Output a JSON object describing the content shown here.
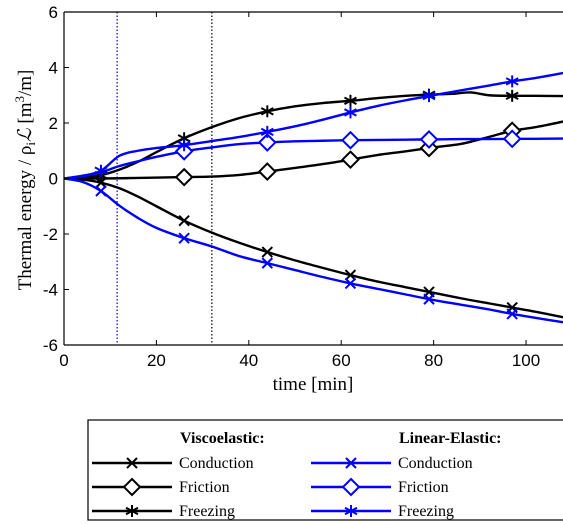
{
  "chart_data": {
    "type": "line",
    "xlabel": "time [min]",
    "ylabel": "Thermal energy / ρ",
    "ylabel_sub": "i",
    "ylabel_script": "ℒ",
    "ylabel_unit": " [m",
    "ylabel_unit_sup": "3",
    "ylabel_unit_end": "/m]",
    "xlim": [
      0,
      108
    ],
    "ylim": [
      -6,
      6
    ],
    "xticks": [
      0,
      20,
      40,
      60,
      80,
      100
    ],
    "yticks": [
      -6,
      -4,
      -2,
      0,
      2,
      4,
      6
    ],
    "xtick_labels": [
      "0",
      "20",
      "40",
      "60",
      "80",
      "100"
    ],
    "ytick_labels": [
      "-6",
      "-4",
      "-2",
      "0",
      "2",
      "4",
      "6"
    ],
    "grid": false,
    "vlines": [
      {
        "x": 11.5,
        "color": "#0000cc",
        "style": "dotted"
      },
      {
        "x": 32,
        "color": "#000000",
        "style": "dotted"
      }
    ],
    "legend": {
      "placement": "below",
      "group_titles": [
        "Viscoelastic:",
        "Linear-Elastic:"
      ]
    },
    "series": [
      {
        "name": "Conduction",
        "group": "Viscoelastic:",
        "color": "#000000",
        "marker": "x",
        "x": [
          0,
          4,
          8,
          12,
          16,
          20,
          26,
          32,
          38,
          44,
          50,
          56,
          62,
          68,
          74,
          80,
          86,
          92,
          97,
          102,
          108
        ],
        "y": [
          0,
          -0.04,
          -0.15,
          -0.35,
          -0.65,
          -1.0,
          -1.52,
          -1.95,
          -2.32,
          -2.65,
          -2.95,
          -3.22,
          -3.48,
          -3.72,
          -3.92,
          -4.12,
          -4.32,
          -4.5,
          -4.65,
          -4.8,
          -5.0
        ],
        "marker_x": [
          8,
          26,
          44,
          62,
          79,
          97
        ]
      },
      {
        "name": "Friction",
        "group": "Viscoelastic:",
        "color": "#000000",
        "marker": "diamond",
        "x": [
          0,
          8,
          16,
          26,
          32,
          38,
          44,
          50,
          56,
          62,
          68,
          74,
          80,
          86,
          92,
          97,
          102,
          108
        ],
        "y": [
          0,
          0.0,
          0.02,
          0.05,
          0.07,
          0.13,
          0.25,
          0.38,
          0.52,
          0.68,
          0.85,
          0.98,
          1.12,
          1.25,
          1.5,
          1.72,
          1.85,
          2.05
        ],
        "marker_x": [
          26,
          44,
          62,
          79,
          97
        ]
      },
      {
        "name": "Freezing",
        "group": "Viscoelastic:",
        "color": "#000000",
        "marker": "asterisk",
        "x": [
          0,
          4,
          8,
          12,
          16,
          20,
          26,
          32,
          38,
          44,
          50,
          56,
          62,
          68,
          74,
          80,
          84,
          88,
          92,
          97,
          102,
          108
        ],
        "y": [
          0,
          0.04,
          0.12,
          0.32,
          0.6,
          0.95,
          1.45,
          1.85,
          2.18,
          2.42,
          2.6,
          2.72,
          2.8,
          2.9,
          2.98,
          3.03,
          3.05,
          3.1,
          3.0,
          2.98,
          2.98,
          2.97
        ],
        "marker_x": [
          8,
          26,
          44,
          62,
          79,
          97
        ]
      },
      {
        "name": "Conduction",
        "group": "Linear-Elastic:",
        "color": "#0000ff",
        "marker": "x",
        "x": [
          0,
          4,
          8,
          12,
          16,
          20,
          26,
          32,
          38,
          44,
          50,
          56,
          62,
          68,
          74,
          80,
          86,
          92,
          97,
          102,
          108
        ],
        "y": [
          0,
          -0.12,
          -0.45,
          -0.98,
          -1.42,
          -1.78,
          -2.15,
          -2.45,
          -2.8,
          -3.05,
          -3.3,
          -3.55,
          -3.78,
          -3.98,
          -4.18,
          -4.38,
          -4.55,
          -4.72,
          -4.88,
          -5.02,
          -5.18
        ],
        "marker_x": [
          8,
          26,
          44,
          62,
          79,
          97
        ]
      },
      {
        "name": "Friction",
        "group": "Linear-Elastic:",
        "color": "#0000ff",
        "marker": "diamond",
        "x": [
          0,
          4,
          8,
          12,
          16,
          20,
          26,
          32,
          38,
          44,
          50,
          56,
          62,
          68,
          74,
          80,
          86,
          92,
          97,
          102,
          108
        ],
        "y": [
          0,
          0.08,
          0.22,
          0.45,
          0.62,
          0.78,
          0.98,
          1.12,
          1.24,
          1.3,
          1.34,
          1.36,
          1.38,
          1.39,
          1.4,
          1.41,
          1.42,
          1.42,
          1.43,
          1.43,
          1.44
        ],
        "marker_x": [
          26,
          44,
          62,
          79,
          97
        ]
      },
      {
        "name": "Freezing",
        "group": "Linear-Elastic:",
        "color": "#0000ff",
        "marker": "asterisk",
        "x": [
          0,
          4,
          8,
          12,
          16,
          20,
          26,
          32,
          38,
          44,
          50,
          56,
          62,
          68,
          74,
          80,
          86,
          92,
          97,
          102,
          108
        ],
        "y": [
          0,
          0.1,
          0.28,
          0.82,
          1.0,
          1.1,
          1.2,
          1.35,
          1.5,
          1.68,
          1.88,
          2.12,
          2.38,
          2.62,
          2.82,
          3.0,
          3.18,
          3.35,
          3.5,
          3.62,
          3.8
        ],
        "marker_x": [
          8,
          26,
          44,
          62,
          79,
          97
        ]
      }
    ]
  }
}
